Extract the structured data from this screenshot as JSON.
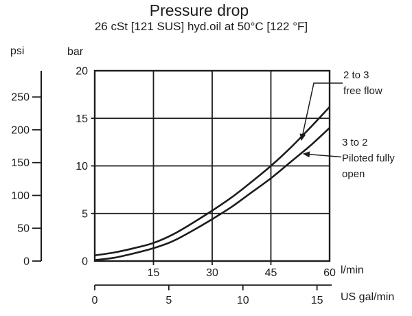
{
  "figure": {
    "title": "Pressure drop",
    "subtitle": "26 cSt [121 SUS] hyd.oil at 50°C [122 °F]"
  },
  "axes": {
    "pressure_primary_unit": "bar",
    "pressure_secondary_unit": "psi",
    "flow_primary_unit": "l/min",
    "flow_secondary_unit": "US gal/min"
  },
  "annotations": {
    "curve1": {
      "line1": "2 to 3",
      "line2": "free flow"
    },
    "curve2": {
      "line1": "3 to 2",
      "line2": "Piloted fully",
      "line3": "open"
    }
  },
  "colors": {
    "ink": "#1c1c1c",
    "background": "#ffffff"
  },
  "chart_data": {
    "type": "line",
    "title": "Pressure drop",
    "subtitle": "26 cSt [121 SUS] hyd.oil at 50°C [122 °F]",
    "xlabel": "l/min",
    "xlabel_secondary": "US gal/min",
    "ylabel": "bar",
    "ylabel_secondary": "psi",
    "xlim": [
      0,
      60
    ],
    "ylim": [
      0,
      20
    ],
    "x_ticks_lmin": [
      15,
      30,
      45,
      60
    ],
    "y_ticks_bar": [
      0,
      5,
      10,
      15,
      20
    ],
    "y_ticks_psi": [
      0,
      50,
      100,
      150,
      200,
      250
    ],
    "x_ticks_usgal": [
      0,
      5,
      10,
      15
    ],
    "lmin_per_usgal": 3.785,
    "psi_per_bar": 14.5,
    "grid": true,
    "legend_position": "right-annotations",
    "x": [
      0,
      5,
      10,
      15,
      20,
      25,
      30,
      35,
      40,
      45,
      50,
      55,
      60
    ],
    "series": [
      {
        "name": "2 to 3 free flow",
        "values": [
          0.6,
          0.9,
          1.35,
          1.9,
          2.8,
          4.0,
          5.3,
          6.7,
          8.3,
          10.0,
          11.9,
          14.0,
          16.2
        ]
      },
      {
        "name": "3 to 2 Piloted fully open",
        "values": [
          0.1,
          0.35,
          0.8,
          1.35,
          2.1,
          3.2,
          4.4,
          5.7,
          7.2,
          8.7,
          10.4,
          12.1,
          14.0
        ]
      }
    ]
  }
}
